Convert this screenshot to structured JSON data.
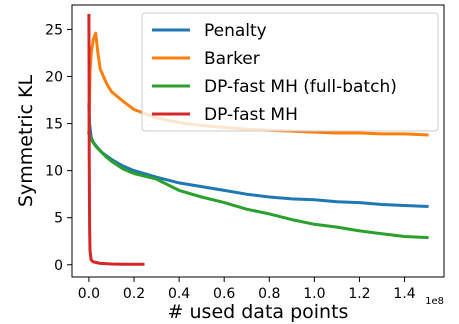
{
  "chart_data": {
    "type": "line",
    "xlabel": "# used data points",
    "ylabel": "Symmetric KL",
    "x_offset_label": "1e8",
    "xlim": [
      -0.075,
      1.575
    ],
    "ylim": [
      -1.3,
      27.6
    ],
    "xticks": [
      0.0,
      0.2,
      0.4,
      0.6,
      0.8,
      1.0,
      1.2,
      1.4
    ],
    "xtick_labels": [
      "0.0",
      "0.2",
      "0.4",
      "0.6",
      "0.8",
      "1.0",
      "1.2",
      "1.4"
    ],
    "yticks": [
      0,
      5,
      10,
      15,
      20,
      25
    ],
    "ytick_labels": [
      "0",
      "5",
      "10",
      "15",
      "20",
      "25"
    ],
    "grid": false,
    "legend_position": "top-right",
    "series": [
      {
        "name": "Penalty",
        "color": "#1f77b4",
        "x": [
          0.0,
          0.003,
          0.01,
          0.02,
          0.04,
          0.06,
          0.1,
          0.15,
          0.2,
          0.3,
          0.4,
          0.5,
          0.6,
          0.7,
          0.8,
          0.9,
          1.0,
          1.1,
          1.2,
          1.3,
          1.4,
          1.5
        ],
        "y": [
          17.0,
          15.0,
          13.5,
          13.0,
          12.4,
          11.9,
          11.2,
          10.5,
          10.0,
          9.3,
          8.7,
          8.3,
          7.9,
          7.5,
          7.2,
          7.0,
          6.9,
          6.7,
          6.6,
          6.4,
          6.3,
          6.2
        ]
      },
      {
        "name": "Barker",
        "color": "#ff7f0e",
        "x": [
          0.0,
          0.005,
          0.01,
          0.02,
          0.03,
          0.04,
          0.05,
          0.08,
          0.1,
          0.15,
          0.2,
          0.3,
          0.4,
          0.5,
          0.6,
          0.7,
          0.8,
          0.9,
          1.0,
          1.1,
          1.2,
          1.3,
          1.4,
          1.5
        ],
        "y": [
          14.0,
          20.5,
          22.5,
          24.0,
          24.6,
          22.5,
          20.8,
          19.2,
          18.4,
          17.4,
          16.5,
          15.6,
          15.1,
          14.8,
          14.6,
          14.4,
          14.3,
          14.2,
          14.1,
          14.0,
          14.0,
          13.9,
          13.9,
          13.8
        ]
      },
      {
        "name": "DP-fast MH (full-batch)",
        "color": "#2ca02c",
        "x": [
          0.0,
          0.005,
          0.01,
          0.03,
          0.05,
          0.08,
          0.1,
          0.15,
          0.2,
          0.3,
          0.4,
          0.5,
          0.6,
          0.7,
          0.8,
          0.9,
          1.0,
          1.1,
          1.2,
          1.3,
          1.4,
          1.5
        ],
        "y": [
          14.0,
          13.6,
          13.3,
          12.6,
          12.1,
          11.4,
          11.0,
          10.2,
          9.7,
          9.1,
          7.9,
          7.2,
          6.6,
          5.9,
          5.4,
          4.8,
          4.3,
          4.0,
          3.6,
          3.3,
          3.0,
          2.9
        ]
      },
      {
        "name": "DP-fast MH",
        "color": "#d62728",
        "x": [
          0.0,
          0.0008,
          0.0015,
          0.003,
          0.005,
          0.01,
          0.02,
          0.05,
          0.1,
          0.15,
          0.2,
          0.24
        ],
        "y": [
          26.5,
          20.0,
          12.0,
          4.0,
          1.5,
          0.5,
          0.3,
          0.15,
          0.08,
          0.05,
          0.05,
          0.05
        ]
      }
    ]
  }
}
